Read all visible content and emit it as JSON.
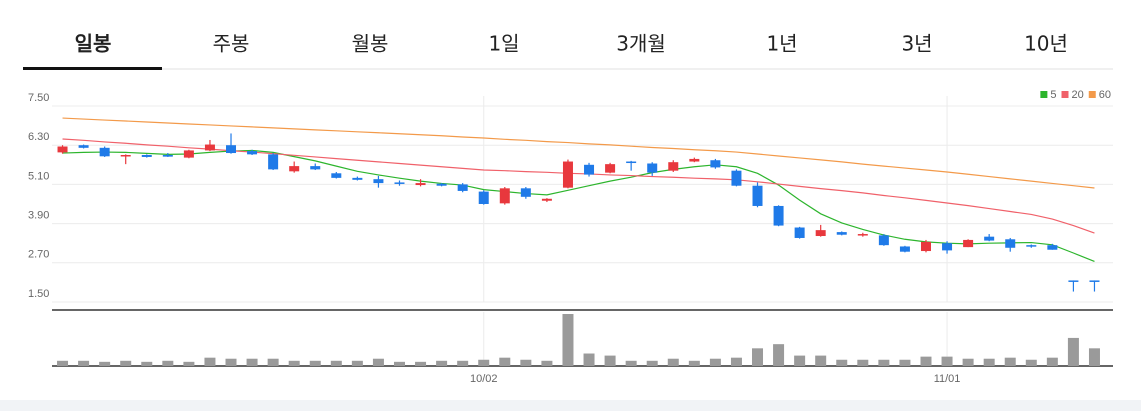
{
  "tabs": [
    "일봉",
    "주봉",
    "월봉",
    "1일",
    "3개월",
    "1년",
    "3년",
    "10년"
  ],
  "active_tab": 0,
  "chart_data": {
    "type": "candlestick",
    "categories": [
      null,
      null,
      null,
      null,
      null,
      null,
      null,
      null,
      null,
      null,
      null,
      null,
      null,
      null,
      null,
      null,
      null,
      null,
      null,
      null,
      "10/02",
      null,
      null,
      null,
      null,
      null,
      null,
      null,
      null,
      null,
      null,
      null,
      null,
      null,
      null,
      null,
      null,
      null,
      null,
      null,
      null,
      null,
      "11/01",
      null,
      null,
      null,
      null,
      null,
      null,
      null
    ],
    "open": [
      6.08,
      6.3,
      6.22,
      5.96,
      6.0,
      6.0,
      5.92,
      6.14,
      6.3,
      6.12,
      6.02,
      5.5,
      5.66,
      5.44,
      5.3,
      5.26,
      5.16,
      5.08,
      5.12,
      5.1,
      4.88,
      4.52,
      4.98,
      4.6,
      5.0,
      5.7,
      5.46,
      5.8,
      5.74,
      5.52,
      5.8,
      5.84,
      5.52,
      5.06,
      4.44,
      3.78,
      3.52,
      3.64,
      3.54,
      3.54,
      3.2,
      3.06,
      3.3,
      3.18,
      3.5,
      3.42,
      3.24,
      3.24,
      2.16,
      2.16
    ],
    "close": [
      6.26,
      6.22,
      5.96,
      6.0,
      5.94,
      5.95,
      6.14,
      6.32,
      6.06,
      6.02,
      5.56,
      5.66,
      5.56,
      5.3,
      5.24,
      5.14,
      5.12,
      5.14,
      5.06,
      4.9,
      4.5,
      4.98,
      4.72,
      4.66,
      5.8,
      5.4,
      5.72,
      5.76,
      5.46,
      5.78,
      5.88,
      5.62,
      5.06,
      4.44,
      3.84,
      3.46,
      3.7,
      3.56,
      3.58,
      3.24,
      3.04,
      3.34,
      3.08,
      3.4,
      3.38,
      3.16,
      3.2,
      3.1,
      2.12,
      2.12
    ],
    "high": [
      6.3,
      6.32,
      6.26,
      6.02,
      6.02,
      6.06,
      6.16,
      6.46,
      6.66,
      6.16,
      6.06,
      5.8,
      5.74,
      5.48,
      5.34,
      5.36,
      5.22,
      5.26,
      5.14,
      5.14,
      4.92,
      5.02,
      5.02,
      4.68,
      5.86,
      5.76,
      5.76,
      5.82,
      5.78,
      5.84,
      5.92,
      5.88,
      5.56,
      5.16,
      4.46,
      3.8,
      3.86,
      3.66,
      3.62,
      3.58,
      3.22,
      3.4,
      3.36,
      3.42,
      3.58,
      3.46,
      3.26,
      3.28,
      2.16,
      2.16
    ],
    "low": [
      6.04,
      6.2,
      5.94,
      5.72,
      5.92,
      5.94,
      5.9,
      6.12,
      6.04,
      6.0,
      5.54,
      5.46,
      5.54,
      5.28,
      5.22,
      5.0,
      5.06,
      5.04,
      5.04,
      4.86,
      4.48,
      4.48,
      4.66,
      4.56,
      4.98,
      5.34,
      5.44,
      5.52,
      5.36,
      5.48,
      5.78,
      5.58,
      5.04,
      4.4,
      3.82,
      3.44,
      3.5,
      3.54,
      3.5,
      3.22,
      3.02,
      3.02,
      2.98,
      3.18,
      3.36,
      3.04,
      3.16,
      3.1,
      1.82,
      1.82
    ],
    "up_color": "#e8383d",
    "down_color": "#1f7ae8",
    "series": [
      {
        "name": "5",
        "color": "#2db52d",
        "values": [
          6.06,
          6.08,
          6.09,
          6.08,
          6.05,
          6.02,
          6.03,
          6.08,
          6.12,
          6.14,
          6.08,
          5.95,
          5.82,
          5.66,
          5.5,
          5.39,
          5.29,
          5.2,
          5.13,
          5.08,
          4.94,
          4.88,
          4.82,
          4.78,
          4.92,
          5.06,
          5.2,
          5.32,
          5.46,
          5.56,
          5.64,
          5.7,
          5.64,
          5.44,
          5.08,
          4.62,
          4.2,
          3.92,
          3.72,
          3.55,
          3.42,
          3.34,
          3.3,
          3.28,
          3.3,
          3.31,
          3.32,
          3.25,
          3.0,
          2.74
        ]
      },
      {
        "name": "20",
        "color": "#f0616a",
        "values": [
          6.49,
          6.45,
          6.4,
          6.36,
          6.31,
          6.27,
          6.22,
          6.18,
          6.13,
          6.09,
          6.04,
          5.99,
          5.94,
          5.89,
          5.84,
          5.79,
          5.74,
          5.69,
          5.64,
          5.59,
          5.54,
          5.52,
          5.49,
          5.47,
          5.44,
          5.42,
          5.39,
          5.37,
          5.34,
          5.32,
          5.29,
          5.27,
          5.24,
          5.18,
          5.11,
          5.04,
          4.97,
          4.91,
          4.84,
          4.76,
          4.69,
          4.61,
          4.53,
          4.45,
          4.36,
          4.27,
          4.18,
          4.04,
          3.84,
          3.61
        ]
      },
      {
        "name": "60",
        "color": "#f39a4a",
        "values": [
          7.13,
          7.1,
          7.07,
          7.04,
          7.01,
          6.98,
          6.95,
          6.92,
          6.89,
          6.86,
          6.83,
          6.8,
          6.77,
          6.74,
          6.71,
          6.68,
          6.65,
          6.62,
          6.59,
          6.55,
          6.52,
          6.48,
          6.45,
          6.41,
          6.38,
          6.34,
          6.31,
          6.27,
          6.23,
          6.2,
          6.16,
          6.13,
          6.09,
          6.03,
          5.97,
          5.91,
          5.85,
          5.79,
          5.72,
          5.66,
          5.6,
          5.54,
          5.48,
          5.41,
          5.34,
          5.27,
          5.2,
          5.13,
          5.06,
          4.99
        ]
      }
    ],
    "volume": [
      5,
      5,
      4,
      5,
      4,
      5,
      4,
      8,
      7,
      7,
      7,
      5,
      5,
      5,
      5,
      7,
      4,
      4,
      5,
      5,
      6,
      8,
      6,
      5,
      50,
      12,
      10,
      5,
      5,
      7,
      5,
      7,
      8,
      17,
      21,
      10,
      10,
      6,
      6,
      6,
      6,
      9,
      9,
      7,
      7,
      8,
      6,
      8,
      27,
      17
    ],
    "volume_color": "#9a9a9a",
    "ylim": [
      1.5,
      7.5
    ],
    "yticks": [
      {
        "value": 1.5,
        "label": "1.50"
      },
      {
        "value": 2.7,
        "label": "2.70"
      },
      {
        "value": 3.9,
        "label": "3.90"
      },
      {
        "value": 5.1,
        "label": "5.10"
      },
      {
        "value": 6.3,
        "label": "6.30"
      },
      {
        "value": 7.5,
        "label": "7.50"
      }
    ],
    "grid": true
  }
}
